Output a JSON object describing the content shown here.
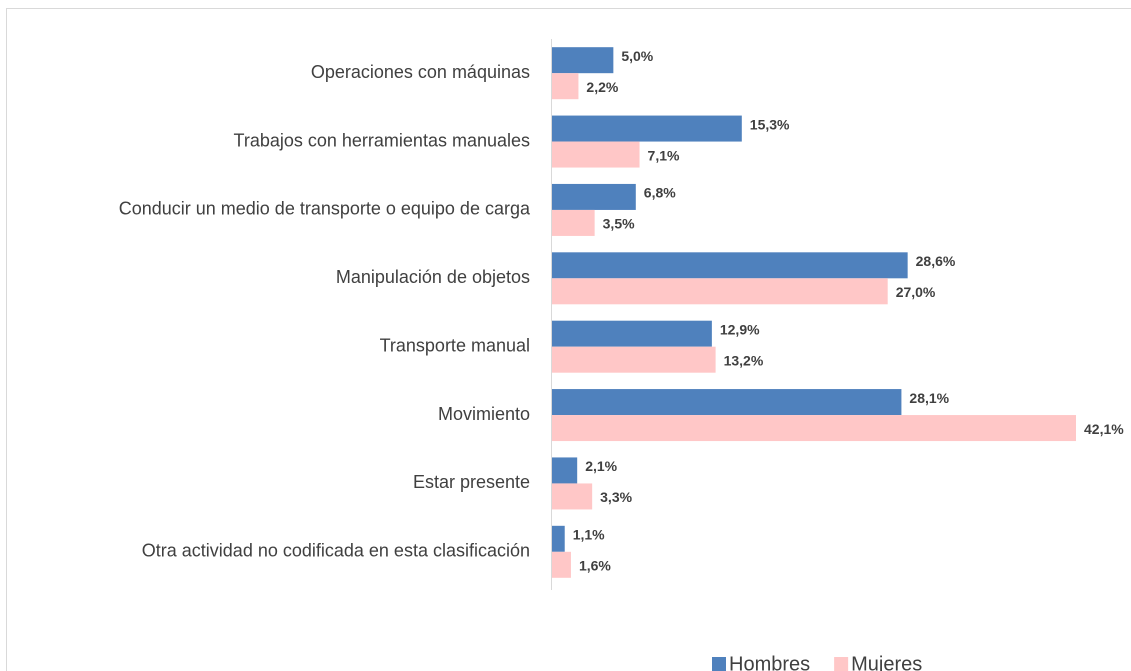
{
  "chart_data": {
    "type": "bar",
    "orientation": "horizontal",
    "categories": [
      "Operaciones con máquinas",
      "Trabajos con herramientas manuales",
      "Conducir un medio de transporte o equipo de carga",
      "Manipulación de objetos",
      "Transporte manual",
      "Movimiento",
      "Estar presente",
      "Otra actividad no codificada en esta clasificación"
    ],
    "series": [
      {
        "name": "Hombres",
        "color": "#4f81bd",
        "values": [
          5.0,
          15.3,
          6.8,
          28.6,
          12.9,
          28.1,
          2.1,
          1.1
        ],
        "value_labels": [
          "5,0%",
          "15,3%",
          "6,8%",
          "28,6%",
          "12,9%",
          "28,1%",
          "2,1%",
          "1,1%"
        ]
      },
      {
        "name": "Mujeres",
        "color": "#ffc7c7",
        "values": [
          2.2,
          7.1,
          3.5,
          27.0,
          13.2,
          42.1,
          3.3,
          1.6
        ],
        "value_labels": [
          "2,2%",
          "7,1%",
          "3,5%",
          "27,0%",
          "13,2%",
          "42,1%",
          "3,3%",
          "1,6%"
        ]
      }
    ],
    "legend": "bottom"
  }
}
